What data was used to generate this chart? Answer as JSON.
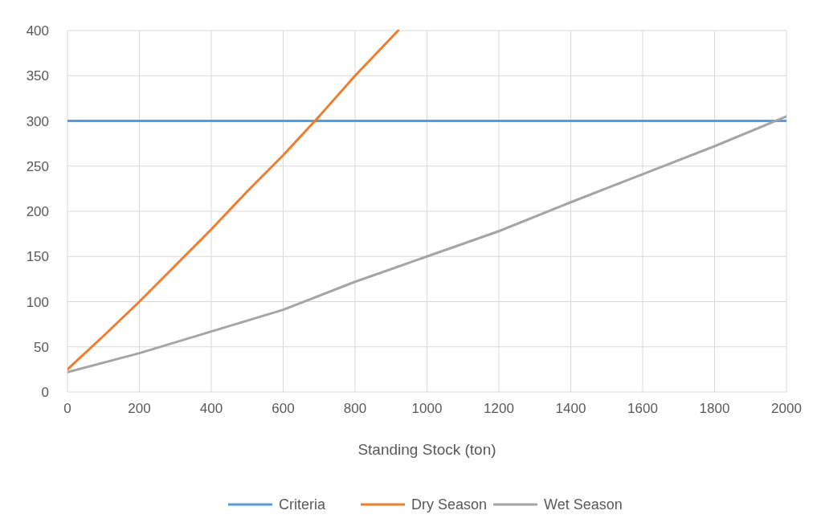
{
  "chart_data": {
    "type": "line",
    "xlabel": "Standing Stock (ton)",
    "xlim": [
      0,
      2000
    ],
    "xticks": [
      0,
      200,
      400,
      600,
      800,
      1000,
      1200,
      1400,
      1600,
      1800,
      2000
    ],
    "ylim": [
      0,
      400
    ],
    "yticks": [
      0,
      50,
      100,
      150,
      200,
      250,
      300,
      350,
      400
    ],
    "grid": true,
    "legend": "bottom",
    "marker": "none",
    "line_style": "solid",
    "series": [
      {
        "name": "Criteria",
        "color": "#5b9bd5",
        "x": [
          0,
          2000
        ],
        "values": [
          300,
          300
        ]
      },
      {
        "name": "Dry Season",
        "color": "#ed7d31",
        "x": [
          0,
          100,
          200,
          300,
          400,
          500,
          600,
          700,
          800,
          920
        ],
        "values": [
          25,
          62,
          100,
          140,
          180,
          222,
          262,
          305,
          350,
          400
        ]
      },
      {
        "name": "Wet Season",
        "color": "#a5a5a5",
        "x": [
          0,
          200,
          400,
          600,
          800,
          1000,
          1200,
          1400,
          1600,
          1800,
          2000
        ],
        "values": [
          22,
          43,
          67,
          91,
          122,
          150,
          178,
          210,
          241,
          272,
          305
        ]
      }
    ]
  }
}
